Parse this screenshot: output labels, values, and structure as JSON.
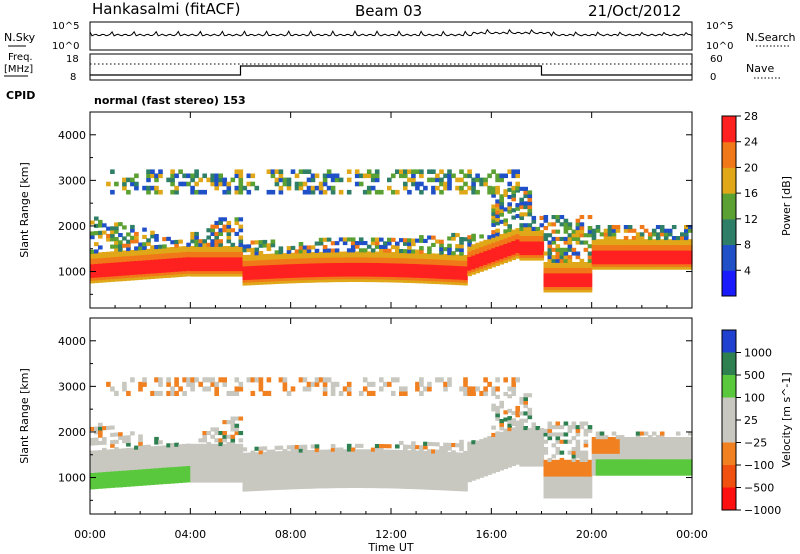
{
  "header": {
    "station": "Hankasalmi (fitACF)",
    "beam": "Beam 03",
    "date": "21/Oct/2012"
  },
  "noise_panel": {
    "left_label": "N.Sky",
    "right_label": "N.Search",
    "left_ticks": [
      "10^5",
      "10^0"
    ],
    "right_ticks": [
      "10^5",
      "10^0"
    ]
  },
  "freq_panel": {
    "left_label_line1": "Freq.",
    "left_label_line2": "[MHz]",
    "left_ticks": [
      "18",
      "8"
    ],
    "right_label": "Nave",
    "right_ticks": [
      "60",
      "0"
    ],
    "cpid_label": "CPID"
  },
  "mode_text": "normal (fast stereo) 153",
  "time_axis": {
    "label": "Time UT",
    "ticks": [
      "00:00",
      "04:00",
      "08:00",
      "12:00",
      "16:00",
      "20:00",
      "00:00"
    ]
  },
  "chart_data": [
    {
      "type": "heatmap",
      "parameter": "Power",
      "ylabel": "Slant Range [km]",
      "yticks": [
        1000,
        2000,
        3000,
        4000
      ],
      "ylim": [
        200,
        4500
      ],
      "xlim_hours": [
        0,
        24
      ],
      "colorbar_label": "Power [dB]",
      "colorbar_ticks": [
        4,
        8,
        12,
        16,
        20,
        24,
        28
      ],
      "colorbar_colors": [
        "#1a1aff",
        "#2050c8",
        "#2f7f68",
        "#5aa032",
        "#e0a818",
        "#f07818",
        "#ff2020"
      ],
      "colorbar_range": [
        0,
        30
      ]
    },
    {
      "type": "heatmap",
      "parameter": "Velocity",
      "ylabel": "Slant Range [km]",
      "yticks": [
        1000,
        2000,
        3000,
        4000
      ],
      "ylim": [
        200,
        4500
      ],
      "xlim_hours": [
        0,
        24
      ],
      "colorbar_label": "Velocity [m s^-1]",
      "colorbar_ticks": [
        "1000",
        "500",
        "100",
        "25",
        "−25",
        "−100",
        "−500",
        "−1000"
      ],
      "colorbar_colors": [
        "#2040d0",
        "#2e8050",
        "#5ac83c",
        "#c8c8c0",
        "#c8c8c0",
        "#f08020",
        "#f05010",
        "#ff1010"
      ],
      "ground_scatter_color": "#c8c8c0"
    }
  ]
}
